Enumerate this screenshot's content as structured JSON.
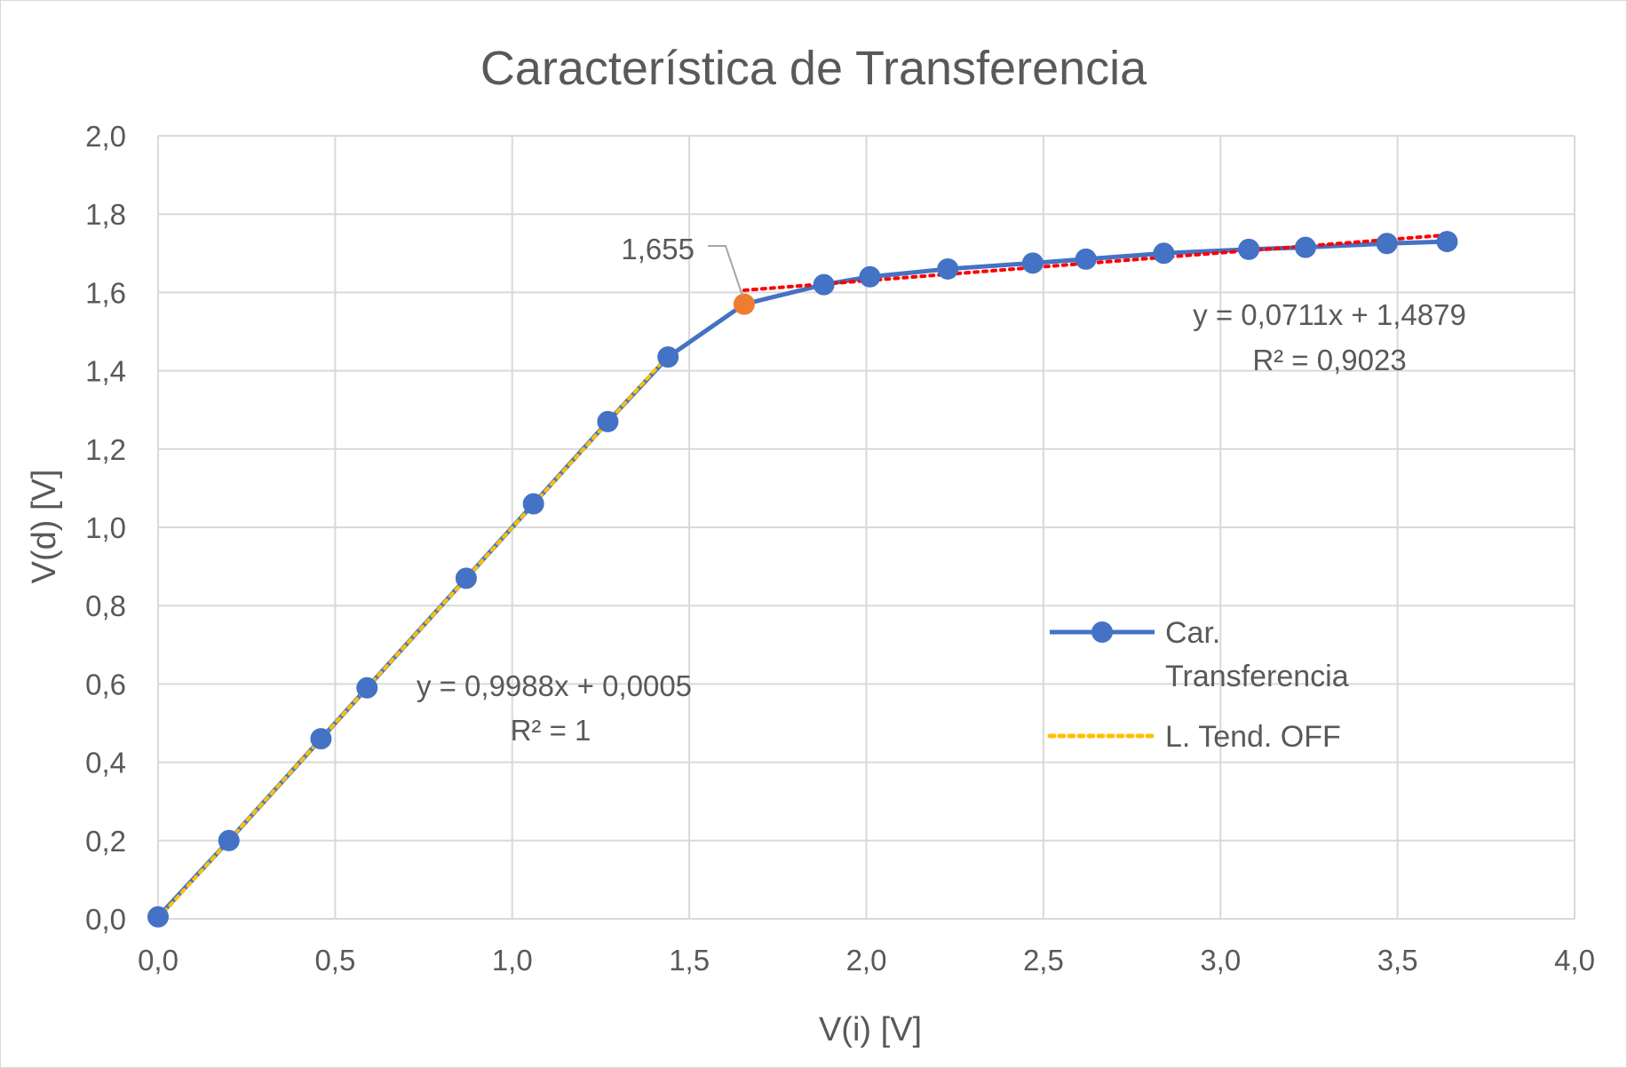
{
  "chart_data": {
    "type": "scatter",
    "title": "Característica de Transferencia",
    "xlabel": "V(i) [V]",
    "ylabel": "V(d) [V]",
    "xlim": [
      0,
      4
    ],
    "ylim": [
      0,
      2
    ],
    "x_ticks": [
      "0,0",
      "0,5",
      "1,0",
      "1,5",
      "2,0",
      "2,5",
      "3,0",
      "3,5",
      "4,0"
    ],
    "y_ticks": [
      "0,0",
      "0,2",
      "0,4",
      "0,6",
      "0,8",
      "1,0",
      "1,2",
      "1,4",
      "1,6",
      "1,8",
      "2,0"
    ],
    "x_tick_values": [
      0,
      0.5,
      1,
      1.5,
      2,
      2.5,
      3,
      3.5,
      4
    ],
    "y_tick_values": [
      0,
      0.2,
      0.4,
      0.6,
      0.8,
      1.0,
      1.2,
      1.4,
      1.6,
      1.8,
      2.0
    ],
    "grid": true,
    "legend_position": "right",
    "series": [
      {
        "name": "Car. Transferencia",
        "color": "#4472C4",
        "marker": "circle",
        "x": [
          0.0,
          0.2,
          0.46,
          0.59,
          0.87,
          1.06,
          1.27,
          1.44,
          1.655,
          1.88,
          2.01,
          2.23,
          2.47,
          2.62,
          2.84,
          3.08,
          3.24,
          3.47,
          3.64
        ],
        "y": [
          0.005,
          0.2,
          0.46,
          0.59,
          0.87,
          1.06,
          1.27,
          1.435,
          1.57,
          1.62,
          1.64,
          1.66,
          1.675,
          1.685,
          1.7,
          1.71,
          1.715,
          1.725,
          1.73
        ]
      }
    ],
    "highlight_point": {
      "x": 1.655,
      "y": 1.57,
      "color": "#ED7D31",
      "label": "1,655"
    },
    "trendlines": [
      {
        "name": "L. Tend. OFF",
        "color": "#FFC000",
        "style": "dotted",
        "slope": 0.9988,
        "intercept": 0.0005,
        "x_range": [
          0.0,
          1.44
        ],
        "equation": "y = 0,9988x + 0,0005",
        "r2": "R² = 1"
      },
      {
        "name": "",
        "color": "#FF0000",
        "style": "dotted",
        "slope": 0.0711,
        "intercept": 1.4879,
        "x_range": [
          1.655,
          3.64
        ],
        "equation": "y = 0,0711x + 1,4879",
        "r2": "R² = 0,9023"
      }
    ],
    "legend": {
      "entries": [
        {
          "label_line1": "Car.",
          "label_line2": "Transferencia",
          "type": "line-marker",
          "color": "#4472C4"
        },
        {
          "label_line1": "L. Tend. OFF",
          "type": "dotted-line",
          "color": "#FFC000"
        }
      ]
    }
  }
}
